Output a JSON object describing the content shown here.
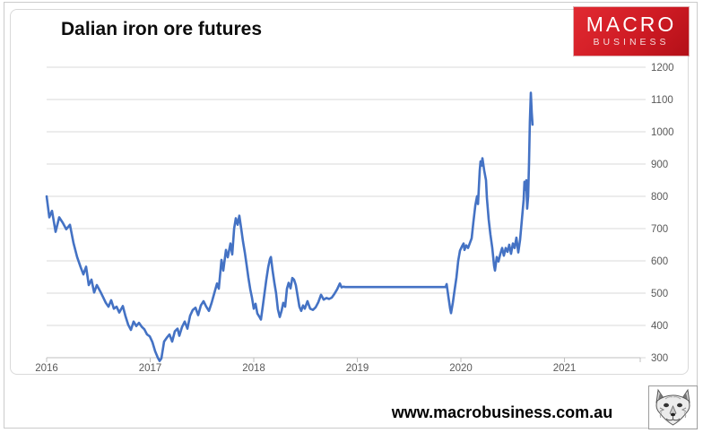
{
  "header": {
    "title": "Dalian iron ore futures"
  },
  "logo": {
    "line1": "MACRO",
    "line2": "BUSINESS",
    "bg_color": "#cf1b24",
    "text_color": "#ffffff"
  },
  "footer": {
    "website": "www.macrobusiness.com.au"
  },
  "icons": {
    "fox_logo": "macrobusiness-fox-logo"
  },
  "chart_data": {
    "type": "line",
    "title": "Dalian iron ore futures",
    "xlabel": "",
    "ylabel": "",
    "xlim": [
      2016,
      2021.73
    ],
    "ylim": [
      300,
      1200
    ],
    "x_ticks": [
      2016,
      2017,
      2018,
      2019,
      2020,
      2021
    ],
    "y_ticks": [
      300,
      400,
      500,
      600,
      700,
      800,
      900,
      1000,
      1100,
      1200
    ],
    "grid": "horizontal",
    "gridline_color": "#d9d9d9",
    "axis_color": "#bfbfbf",
    "tick_label_color": "#595959",
    "line_color": "#4472c4",
    "legend": "none",
    "series": [
      {
        "name": "Dalian iron ore futures",
        "points": [
          [
            2016.0,
            800
          ],
          [
            2016.026,
            735
          ],
          [
            2016.052,
            755
          ],
          [
            2016.087,
            690
          ],
          [
            2016.121,
            735
          ],
          [
            2016.156,
            718
          ],
          [
            2016.19,
            698
          ],
          [
            2016.225,
            712
          ],
          [
            2016.26,
            655
          ],
          [
            2016.294,
            612
          ],
          [
            2016.329,
            580
          ],
          [
            2016.355,
            558
          ],
          [
            2016.381,
            582
          ],
          [
            2016.407,
            525
          ],
          [
            2016.433,
            542
          ],
          [
            2016.459,
            502
          ],
          [
            2016.485,
            525
          ],
          [
            2016.519,
            505
          ],
          [
            2016.545,
            488
          ],
          [
            2016.571,
            470
          ],
          [
            2016.597,
            458
          ],
          [
            2016.623,
            478
          ],
          [
            2016.649,
            452
          ],
          [
            2016.675,
            458
          ],
          [
            2016.701,
            440
          ],
          [
            2016.736,
            460
          ],
          [
            2016.762,
            428
          ],
          [
            2016.788,
            402
          ],
          [
            2016.814,
            386
          ],
          [
            2016.84,
            412
          ],
          [
            2016.866,
            398
          ],
          [
            2016.892,
            408
          ],
          [
            2016.918,
            396
          ],
          [
            2016.944,
            388
          ],
          [
            2016.97,
            372
          ],
          [
            2016.996,
            366
          ],
          [
            2017.022,
            348
          ],
          [
            2017.048,
            320
          ],
          [
            2017.074,
            300
          ],
          [
            2017.091,
            290
          ],
          [
            2017.108,
            298
          ],
          [
            2017.134,
            350
          ],
          [
            2017.16,
            362
          ],
          [
            2017.186,
            372
          ],
          [
            2017.212,
            350
          ],
          [
            2017.238,
            382
          ],
          [
            2017.264,
            390
          ],
          [
            2017.281,
            368
          ],
          [
            2017.307,
            395
          ],
          [
            2017.333,
            412
          ],
          [
            2017.359,
            390
          ],
          [
            2017.385,
            430
          ],
          [
            2017.411,
            448
          ],
          [
            2017.437,
            455
          ],
          [
            2017.463,
            432
          ],
          [
            2017.489,
            462
          ],
          [
            2017.515,
            475
          ],
          [
            2017.541,
            458
          ],
          [
            2017.567,
            445
          ],
          [
            2017.593,
            470
          ],
          [
            2017.619,
            500
          ],
          [
            2017.645,
            530
          ],
          [
            2017.662,
            514
          ],
          [
            2017.688,
            603
          ],
          [
            2017.706,
            570
          ],
          [
            2017.732,
            634
          ],
          [
            2017.749,
            611
          ],
          [
            2017.775,
            654
          ],
          [
            2017.792,
            620
          ],
          [
            2017.81,
            700
          ],
          [
            2017.827,
            732
          ],
          [
            2017.844,
            712
          ],
          [
            2017.861,
            740
          ],
          [
            2017.879,
            700
          ],
          [
            2017.896,
            660
          ],
          [
            2017.914,
            625
          ],
          [
            2017.931,
            588
          ],
          [
            2017.948,
            548
          ],
          [
            2017.966,
            512
          ],
          [
            2017.983,
            486
          ],
          [
            2018.0,
            452
          ],
          [
            2018.017,
            467
          ],
          [
            2018.035,
            437
          ],
          [
            2018.052,
            428
          ],
          [
            2018.069,
            418
          ],
          [
            2018.087,
            458
          ],
          [
            2018.104,
            500
          ],
          [
            2018.121,
            542
          ],
          [
            2018.139,
            580
          ],
          [
            2018.156,
            605
          ],
          [
            2018.165,
            612
          ],
          [
            2018.182,
            570
          ],
          [
            2018.199,
            532
          ],
          [
            2018.216,
            500
          ],
          [
            2018.233,
            450
          ],
          [
            2018.251,
            426
          ],
          [
            2018.268,
            445
          ],
          [
            2018.285,
            470
          ],
          [
            2018.303,
            458
          ],
          [
            2018.32,
            514
          ],
          [
            2018.337,
            532
          ],
          [
            2018.355,
            515
          ],
          [
            2018.372,
            547
          ],
          [
            2018.389,
            542
          ],
          [
            2018.406,
            525
          ],
          [
            2018.424,
            490
          ],
          [
            2018.441,
            458
          ],
          [
            2018.458,
            445
          ],
          [
            2018.476,
            462
          ],
          [
            2018.493,
            452
          ],
          [
            2018.519,
            475
          ],
          [
            2018.545,
            452
          ],
          [
            2018.571,
            448
          ],
          [
            2018.597,
            456
          ],
          [
            2018.623,
            472
          ],
          [
            2018.649,
            495
          ],
          [
            2018.675,
            480
          ],
          [
            2018.701,
            485
          ],
          [
            2018.727,
            482
          ],
          [
            2018.753,
            486
          ],
          [
            2018.779,
            498
          ],
          [
            2018.805,
            512
          ],
          [
            2018.831,
            530
          ],
          [
            2018.848,
            518
          ],
          [
            2018.866,
            520
          ],
          [
            2018.883,
            519
          ],
          [
            2019.0,
            519
          ],
          [
            2019.3,
            519
          ],
          [
            2019.6,
            519
          ],
          [
            2019.853,
            519
          ],
          [
            2019.862,
            528
          ],
          [
            2019.879,
            490
          ],
          [
            2019.896,
            452
          ],
          [
            2019.905,
            438
          ],
          [
            2019.922,
            470
          ],
          [
            2019.94,
            512
          ],
          [
            2019.957,
            548
          ],
          [
            2019.974,
            600
          ],
          [
            2019.991,
            632
          ],
          [
            2020.01,
            645
          ],
          [
            2020.026,
            654
          ],
          [
            2020.035,
            634
          ],
          [
            2020.052,
            648
          ],
          [
            2020.069,
            640
          ],
          [
            2020.087,
            655
          ],
          [
            2020.104,
            670
          ],
          [
            2020.121,
            722
          ],
          [
            2020.139,
            772
          ],
          [
            2020.156,
            800
          ],
          [
            2020.165,
            776
          ],
          [
            2020.182,
            880
          ],
          [
            2020.19,
            908
          ],
          [
            2020.199,
            895
          ],
          [
            2020.208,
            918
          ],
          [
            2020.225,
            880
          ],
          [
            2020.242,
            850
          ],
          [
            2020.251,
            795
          ],
          [
            2020.268,
            728
          ],
          [
            2020.285,
            682
          ],
          [
            2020.303,
            640
          ],
          [
            2020.32,
            585
          ],
          [
            2020.329,
            570
          ],
          [
            2020.346,
            612
          ],
          [
            2020.363,
            598
          ],
          [
            2020.381,
            622
          ],
          [
            2020.398,
            640
          ],
          [
            2020.415,
            616
          ],
          [
            2020.433,
            640
          ],
          [
            2020.45,
            628
          ],
          [
            2020.467,
            650
          ],
          [
            2020.484,
            622
          ],
          [
            2020.502,
            654
          ],
          [
            2020.519,
            640
          ],
          [
            2020.536,
            672
          ],
          [
            2020.554,
            626
          ],
          [
            2020.571,
            665
          ],
          [
            2020.588,
            724
          ],
          [
            2020.606,
            790
          ],
          [
            2020.614,
            845
          ],
          [
            2020.623,
            820
          ],
          [
            2020.632,
            850
          ],
          [
            2020.64,
            762
          ],
          [
            2020.649,
            800
          ],
          [
            2020.658,
            905
          ],
          [
            2020.666,
            1030
          ],
          [
            2020.675,
            1121
          ],
          [
            2020.684,
            1060
          ],
          [
            2020.692,
            1022
          ]
        ]
      }
    ]
  }
}
